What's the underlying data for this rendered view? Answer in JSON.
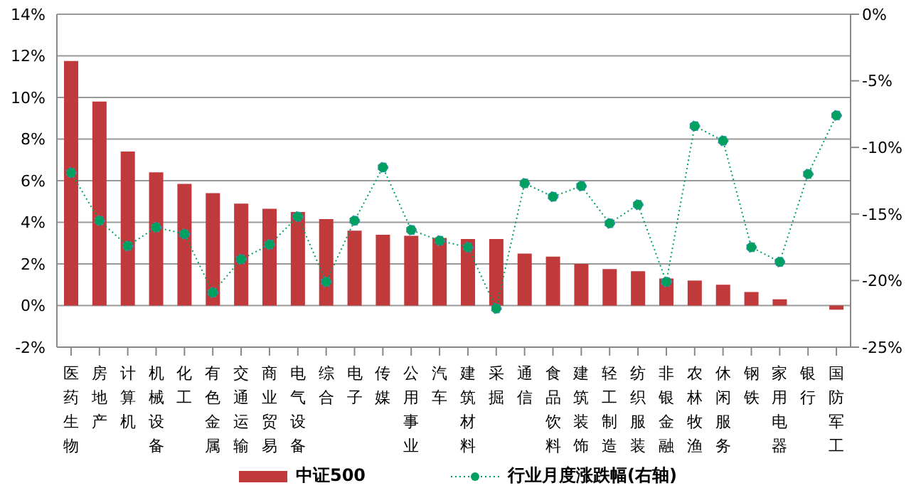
{
  "chart_data": {
    "type": "bar",
    "categories": [
      "医药生物",
      "房地产",
      "计算机",
      "机械设备",
      "化工",
      "有色金属",
      "交通运输",
      "商业贸易",
      "电气设备",
      "综合",
      "电子",
      "传媒",
      "公用事业",
      "汽车",
      "建筑材料",
      "采掘",
      "通信",
      "食品饮料",
      "建筑装饰",
      "轻工制造",
      "纺织服装",
      "非银金融",
      "农林牧渔",
      "休闲服务",
      "钢铁",
      "家用电器",
      "银行",
      "国防军工"
    ],
    "series": [
      {
        "name": "中证500",
        "color": "#c0393b",
        "values": [
          11.75,
          9.8,
          7.4,
          6.4,
          5.85,
          5.4,
          4.9,
          4.65,
          4.5,
          4.15,
          3.6,
          3.4,
          3.35,
          3.25,
          3.2,
          3.2,
          2.5,
          2.35,
          2.0,
          1.75,
          1.65,
          1.3,
          1.2,
          1.0,
          0.65,
          0.3,
          0,
          -0.2
        ]
      },
      {
        "name": "行业月度涨跌幅(右轴)",
        "type": "line",
        "axis": "y2",
        "color": "#00a060",
        "marker": "circle",
        "line_style": "dotted",
        "values": [
          -11.9,
          -15.5,
          -17.4,
          -16.0,
          -16.5,
          -20.9,
          -18.4,
          -17.3,
          -15.2,
          -20.1,
          -15.5,
          -11.5,
          -16.2,
          -17.0,
          -17.5,
          -22.1,
          -12.7,
          -13.7,
          -12.9,
          -15.7,
          -14.3,
          -20.1,
          -8.4,
          -9.5,
          -17.5,
          -18.6,
          -12.0,
          -7.6
        ]
      }
    ],
    "ylim": [
      -2,
      14
    ],
    "yticks": [
      {
        "value": -2,
        "label": "-2%"
      },
      {
        "value": 0,
        "label": "0%"
      },
      {
        "value": 2,
        "label": "2%"
      },
      {
        "value": 4,
        "label": "4%"
      },
      {
        "value": 6,
        "label": "6%"
      },
      {
        "value": 8,
        "label": "8%"
      },
      {
        "value": 10,
        "label": "10%"
      },
      {
        "value": 12,
        "label": "12%"
      },
      {
        "value": 14,
        "label": "14%"
      }
    ],
    "y2lim": [
      -25,
      0
    ],
    "y2ticks": [
      {
        "value": -25,
        "label": "-25%"
      },
      {
        "value": -20,
        "label": "-20%"
      },
      {
        "value": -15,
        "label": "-15%"
      },
      {
        "value": -10,
        "label": "-10%"
      },
      {
        "value": -5,
        "label": "-5%"
      },
      {
        "value": 0,
        "label": "0%"
      }
    ],
    "grid": "y",
    "legend": "bottom"
  }
}
